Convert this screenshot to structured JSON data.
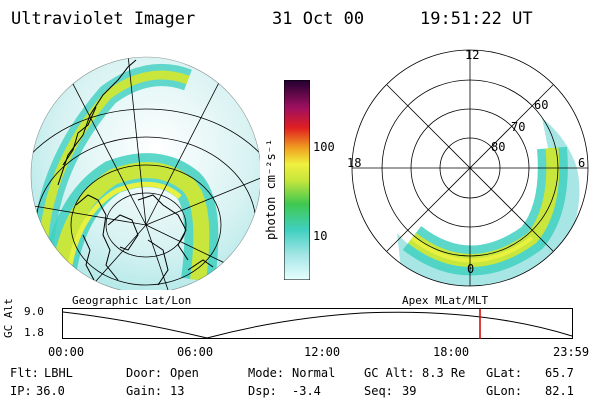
{
  "header": {
    "title": "Ultraviolet Imager",
    "date": "31 Oct 00",
    "time": "19:51:22 UT"
  },
  "colorbar": {
    "unit_label": "photon cm⁻²s⁻¹",
    "ticks": [
      {
        "value": "100"
      },
      {
        "value": "10"
      }
    ]
  },
  "polar_plot": {
    "mlt_labels": {
      "top": "12",
      "left": "18",
      "right": "6",
      "bottom": "0"
    },
    "lat_labels": [
      "60",
      "70",
      "80"
    ]
  },
  "map_labels": {
    "left": "Geographic Lat/Lon",
    "right": "Apex MLat/MLT"
  },
  "altitude_plot": {
    "axis_label": "GC Alt",
    "ymax": "9.0",
    "ymin": "1.8",
    "x_ticks": [
      "00:00",
      "06:00",
      "12:00",
      "18:00",
      "23:59"
    ]
  },
  "footer": {
    "row1": [
      {
        "key": "Flt:",
        "value": "LBHL"
      },
      {
        "key": "Door:",
        "value": "Open"
      },
      {
        "key": "Mode:",
        "value": "Normal"
      },
      {
        "key": "GC Alt:",
        "value": "8.3 Re"
      },
      {
        "key": "GLat:",
        "value": "65.7"
      }
    ],
    "row2": [
      {
        "key": "IP:",
        "value": "36.0"
      },
      {
        "key": "Gain:",
        "value": "13"
      },
      {
        "key": "Dsp:",
        "value": "-3.4"
      },
      {
        "key": "Seq:",
        "value": "39"
      },
      {
        "key": "GLon:",
        "value": "82.1"
      }
    ]
  },
  "colors": {
    "aurora_outer": "#a8e6e6",
    "aurora_mid": "#40d0c0",
    "aurora_core": "#c8e63c",
    "aurora_peak": "#e8f040",
    "marker": "#cc0000"
  }
}
